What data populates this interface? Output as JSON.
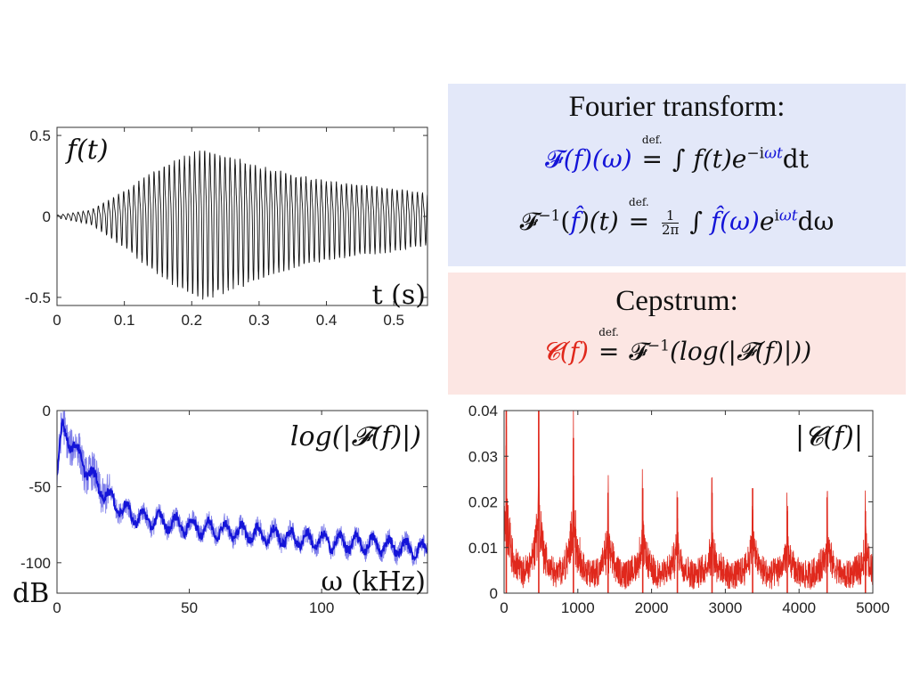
{
  "colors": {
    "fourier_box": "#e3e8f9",
    "cepstrum_box": "#fce6e3",
    "signal": "#111111",
    "spectrum": "#1414d8",
    "cepstrum": "#e0281c"
  },
  "boxes": {
    "fourier": {
      "heading": "Fourier transform:",
      "line1": {
        "lhs_op": "𝓕",
        "lhs_arg": "(f)(ω)",
        "def": "def.",
        "eq": "=",
        "rhs_pre": "∫ f(t)e",
        "rhs_exp_a": "−i",
        "rhs_exp_b": "ωt",
        "rhs_post": "dt"
      },
      "line2": {
        "op": "𝓕",
        "op_exp": "−1",
        "arg_open": "(",
        "arg": "f̂",
        "arg_close": ")(t)",
        "def": "def.",
        "eq": "=",
        "frac_num": "1",
        "frac_den": "2π",
        "int": "∫",
        "fhat": "f̂(ω)",
        "e": "e",
        "exp_a": "i",
        "exp_b": "ωt",
        "post": "dω"
      }
    },
    "cepstrum": {
      "heading": "Cepstrum:",
      "line1": {
        "lhs": "𝓒(f)",
        "def": "def.",
        "eq": "=",
        "rhs": "𝓕",
        "rhs_exp": "−1",
        "rhs_post": "(log(|𝓕(f)|))"
      }
    }
  },
  "chart_data": [
    {
      "id": "signal",
      "type": "line",
      "label": "f(t)",
      "xlabel": "t (s)",
      "ylabel": "",
      "xlim": [
        0,
        0.55
      ],
      "ylim": [
        -0.55,
        0.55
      ],
      "xticks": [
        0,
        0.1,
        0.2,
        0.3,
        0.4,
        0.5
      ],
      "xtick_labels": [
        "0",
        "0.1",
        "0.2",
        "0.3",
        "0.4",
        "0.5"
      ],
      "yticks": [
        0.5,
        0,
        -0.5
      ],
      "ytick_labels": [
        "0.5",
        "0",
        "-0.5"
      ],
      "grid": false,
      "series": [
        {
          "color": "#111111",
          "x": [
            0,
            0.05,
            0.1,
            0.15,
            0.2,
            0.22,
            0.25,
            0.3,
            0.35,
            0.4,
            0.45,
            0.5,
            0.55
          ],
          "envelope": [
            0.01,
            0.05,
            0.2,
            0.38,
            0.5,
            0.53,
            0.48,
            0.4,
            0.33,
            0.28,
            0.25,
            0.22,
            0.18
          ]
        }
      ]
    },
    {
      "id": "spectrum",
      "type": "line",
      "label": "log(|𝓕(f)|)",
      "xlabel": "ω (kHz)",
      "ylabel": "dB",
      "xlim": [
        0,
        140
      ],
      "ylim": [
        -120,
        0
      ],
      "xticks": [
        0,
        50,
        100
      ],
      "xtick_labels": [
        "0",
        "50",
        "100"
      ],
      "yticks": [
        0,
        -50,
        -100
      ],
      "ytick_labels": [
        "0",
        "-50",
        "-100"
      ],
      "grid": false,
      "series": [
        {
          "color": "#1414d8",
          "x": [
            0,
            2,
            5,
            10,
            15,
            20,
            25,
            30,
            40,
            50,
            60,
            70,
            80,
            90,
            100,
            110,
            120,
            130,
            140
          ],
          "values": [
            -45,
            -10,
            -20,
            -35,
            -48,
            -58,
            -65,
            -70,
            -73,
            -76,
            -78,
            -80,
            -82,
            -84,
            -86,
            -87,
            -88,
            -90,
            -92
          ]
        }
      ]
    },
    {
      "id": "cepstrum",
      "type": "line",
      "label": "|𝓒(f)|",
      "xlabel": "",
      "ylabel": "",
      "xlim": [
        0,
        5000
      ],
      "ylim": [
        0,
        0.04
      ],
      "xticks": [
        0,
        1000,
        2000,
        3000,
        4000,
        5000
      ],
      "xtick_labels": [
        "0",
        "1000",
        "2000",
        "3000",
        "4000",
        "5000"
      ],
      "yticks": [
        0.04,
        0.03,
        0.02,
        0.01,
        0
      ],
      "ytick_labels": [
        "0.04",
        "0.03",
        "0.02",
        "0.01",
        "0"
      ],
      "grid": false,
      "series": [
        {
          "color": "#e0281c",
          "peaks": [
            {
              "x": 30,
              "y": 0.04
            },
            {
              "x": 470,
              "y": 0.04
            },
            {
              "x": 940,
              "y": 0.034
            },
            {
              "x": 1410,
              "y": 0.022
            },
            {
              "x": 1880,
              "y": 0.023
            },
            {
              "x": 2350,
              "y": 0.021
            },
            {
              "x": 2820,
              "y": 0.022
            },
            {
              "x": 3370,
              "y": 0.023
            },
            {
              "x": 3840,
              "y": 0.018
            },
            {
              "x": 4380,
              "y": 0.021
            },
            {
              "x": 4900,
              "y": 0.018
            }
          ],
          "baseline": 0.004
        }
      ]
    }
  ]
}
